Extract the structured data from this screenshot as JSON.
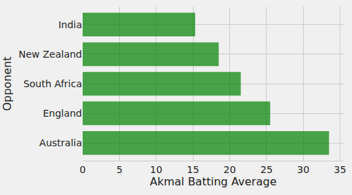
{
  "chart_data": {
    "type": "bar",
    "orientation": "horizontal",
    "categories": [
      "Australia",
      "England",
      "South Africa",
      "New Zealand",
      "India"
    ],
    "values": [
      33.5,
      25.5,
      21.5,
      18.5,
      15.3
    ],
    "color": "green",
    "x_label": "Akmal Batting Average",
    "y_label": "Opponent",
    "xlim": [
      0,
      35.5
    ],
    "xticks": [
      0,
      5,
      10,
      15,
      20,
      25,
      30,
      35
    ],
    "grid": true
  }
}
